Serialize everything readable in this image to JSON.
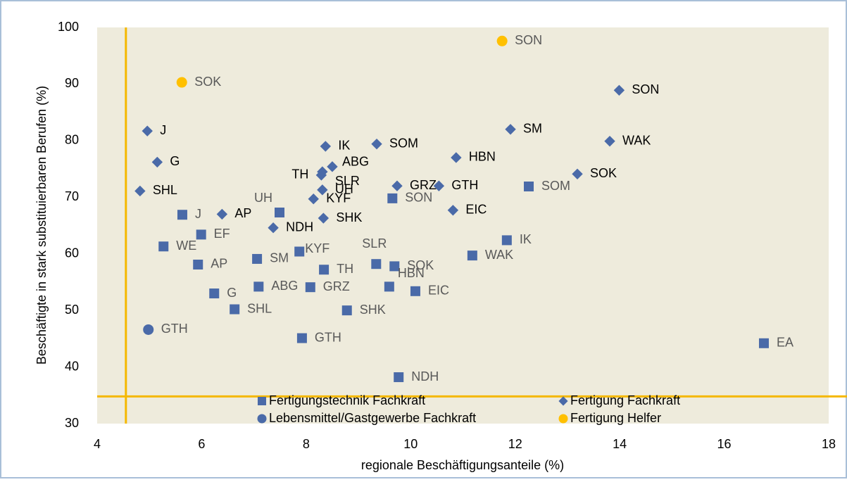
{
  "chart_data": {
    "type": "scatter",
    "xlabel": "regionale Beschäftigungsanteile (%)",
    "ylabel": "Beschäftigte in stark substituierbaren Berufen (%)",
    "xlim": [
      4,
      18
    ],
    "xticks": [
      4,
      6,
      8,
      10,
      12,
      14,
      16,
      18
    ],
    "ylim": [
      30,
      100
    ],
    "yticks": [
      30,
      40,
      50,
      60,
      70,
      80,
      90,
      100
    ],
    "grid": false,
    "vline": 4.55,
    "hline": 34.8,
    "line_color": "#f5b800",
    "series": [
      {
        "name": "Fertigungstechnik Fachkraft",
        "marker": "square",
        "color": "#4a6aa8",
        "label_color": "#595959",
        "labels": [
          "J",
          "EF",
          "WE",
          "AP",
          "G",
          "SHL",
          "SM",
          "ABG",
          "UH",
          "KYF",
          "GTH",
          "TH",
          "GRZ",
          "SHK",
          "SLR",
          "SOK",
          "HBN",
          "EIC",
          "SON",
          "NDH",
          "IK",
          "WAK",
          "SOM",
          "EA"
        ],
        "x": [
          5.63,
          5.99,
          5.27,
          5.93,
          6.24,
          6.63,
          7.06,
          7.09,
          7.49,
          7.87,
          7.92,
          8.34,
          8.08,
          8.78,
          9.34,
          9.69,
          9.59,
          10.09,
          9.65,
          9.77,
          11.84,
          11.18,
          12.26,
          16.76
        ],
        "values": [
          66.9,
          63.4,
          61.3,
          58.1,
          53.0,
          50.2,
          59.1,
          54.2,
          67.3,
          60.4,
          45.1,
          57.2,
          54.1,
          50.0,
          58.2,
          57.8,
          54.2,
          53.4,
          69.8,
          38.2,
          62.4,
          59.7,
          71.9,
          44.2
        ]
      },
      {
        "name": "Fertigung Fachkraft",
        "marker": "diamond",
        "color": "#4a6aa8",
        "label_color": "#000000",
        "labels": [
          "J",
          "G",
          "SHL",
          "AP",
          "NDH",
          "TH",
          "SHK",
          "IK",
          "SLR",
          "ABG",
          "UH",
          "KYF",
          "SOM",
          "GRZ",
          "HBN",
          "GTH",
          "EIC",
          "SM",
          "SON",
          "WAK",
          "SOK"
        ],
        "x": [
          4.96,
          5.15,
          4.82,
          6.39,
          7.37,
          8.29,
          8.33,
          8.37,
          8.31,
          8.5,
          8.31,
          8.14,
          9.35,
          9.74,
          10.87,
          10.54,
          10.81,
          11.91,
          13.99,
          13.81,
          13.19
        ],
        "values": [
          81.7,
          76.2,
          71.1,
          67.0,
          64.6,
          73.9,
          66.3,
          79.0,
          74.5,
          75.4,
          71.3,
          69.7,
          79.4,
          72.0,
          77.0,
          72.0,
          67.7,
          82.0,
          88.9,
          79.9,
          74.1
        ]
      },
      {
        "name": "Lebensmittel/Gastgewerbe Fachkraft",
        "marker": "circle",
        "color": "#4a6aa8",
        "label_color": "#595959",
        "labels": [
          "GTH"
        ],
        "x": [
          4.98
        ],
        "values": [
          46.6
        ]
      },
      {
        "name": "Fertigung Helfer",
        "marker": "circle",
        "color": "#ffc000",
        "label_color": "#595959",
        "labels": [
          "SOK",
          "SON"
        ],
        "x": [
          5.62,
          11.75
        ],
        "values": [
          90.3,
          97.6
        ]
      }
    ]
  }
}
